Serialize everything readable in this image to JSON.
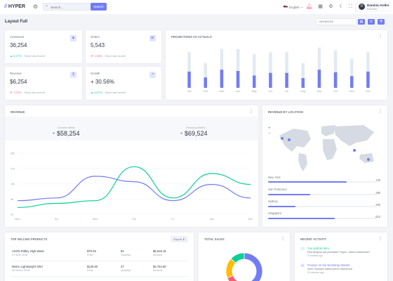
{
  "topbar": {
    "brand": "HYPER",
    "search_placeholder": "Search...",
    "search_button": "Search",
    "language": "English",
    "user_name": "Dominic Keller",
    "user_role": "Founder",
    "avatar_initial": "D"
  },
  "page": {
    "title": "Layout Full",
    "date": "09/18/2020"
  },
  "stats": [
    {
      "title": "Customers",
      "value": "36,254",
      "change": "5.27%",
      "trend": "up",
      "since": "Since last month",
      "icon": "users-icon"
    },
    {
      "title": "Orders",
      "value": "5,543",
      "change": "1.08%",
      "trend": "down",
      "since": "Since last month",
      "icon": "cart-icon"
    },
    {
      "title": "Revenue",
      "value": "$6,254",
      "change": "7.00%",
      "trend": "down",
      "since": "Since last month",
      "icon": "dollar-icon"
    },
    {
      "title": "Growth",
      "value": "+ 30.56%",
      "change": "4.87%",
      "trend": "up",
      "since": "Since last month",
      "icon": "pulse-icon"
    }
  ],
  "projections": {
    "title": "Projections Vs Actuals",
    "chart_data": {
      "type": "bar",
      "categories": [
        "Jan",
        "Feb",
        "Mar",
        "Apr",
        "May",
        "Jun",
        "Jul",
        "Aug",
        "Sep",
        "Oct",
        "Nov",
        "Dec"
      ],
      "series": [
        {
          "values": [
            25,
            16,
            28,
            26,
            19,
            23,
            23,
            15,
            28,
            24,
            18,
            25
          ]
        },
        {
          "values": [
            55,
            38,
            60,
            60,
            52,
            55,
            55,
            38,
            62,
            58,
            45,
            55
          ]
        }
      ],
      "colors": [
        "#727cf5",
        "#e3eaef"
      ],
      "ylim": [
        0,
        65
      ]
    }
  },
  "revenue": {
    "title": "Revenue",
    "current_label": "Current Week",
    "current_value": "$58,254",
    "previous_label": "Previous Week",
    "previous_value": "$69,524",
    "chart_data": {
      "type": "line",
      "categories": [
        "Mon",
        "Tue",
        "Wed",
        "Thu",
        "Fri",
        "Sat",
        "Sun"
      ],
      "series": [
        {
          "values": [
            10,
            12,
            28,
            24,
            10,
            22,
            12
          ],
          "color": "#727cf5"
        },
        {
          "values": [
            5,
            8,
            10,
            35,
            12,
            30,
            22
          ],
          "color": "#0acf97"
        }
      ],
      "ylim": [
        0,
        45
      ],
      "yticks": [
        "36k",
        "27k",
        "18k",
        "9k",
        "0k"
      ]
    }
  },
  "location": {
    "title": "Revenue By Location",
    "items": [
      {
        "name": "New York",
        "value": "72k",
        "pct": 72
      },
      {
        "name": "San Francisco",
        "value": "39k",
        "pct": 39
      },
      {
        "name": "Sydney",
        "value": "25k",
        "pct": 25
      },
      {
        "name": "Singapore",
        "value": "61k",
        "pct": 61
      }
    ]
  },
  "top_selling": {
    "title": "Top Selling Products",
    "export": "Export",
    "rows": [
      {
        "name": "ASOS Ridley High Waist",
        "date": "07 April 2018",
        "price": "$79.49",
        "price_label": "Price",
        "qty": "82",
        "qty_label": "Quantity",
        "amount": "$6,518.18",
        "amount_label": "Amount"
      },
      {
        "name": "Marco Lightweight Shirt",
        "date": "25 March 2018",
        "price": "$128.50",
        "price_label": "Price",
        "qty": "37",
        "qty_label": "Quantity",
        "amount": "$4,754.50",
        "amount_label": "Amount"
      }
    ]
  },
  "total_sales": {
    "title": "Total Sales",
    "chart_data": {
      "type": "pie",
      "values": [
        44,
        25,
        18,
        13
      ],
      "colors": [
        "#727cf5",
        "#fa5c7c",
        "#ffbc00",
        "#0acf97"
      ]
    }
  },
  "activity": {
    "title": "Recent Activity",
    "items": [
      {
        "title": "You sold an item",
        "text": "Paul Burgess just purchased \"Hyper - Admin Dashboard\"!",
        "time": "5 minutes ago",
        "color": "#0acf97"
      },
      {
        "title": "Product on the Bootstrap Market",
        "text": "Dave Gamache added Admin Dashboard",
        "time": "30 minutes ago",
        "color": "#727cf5"
      }
    ]
  }
}
